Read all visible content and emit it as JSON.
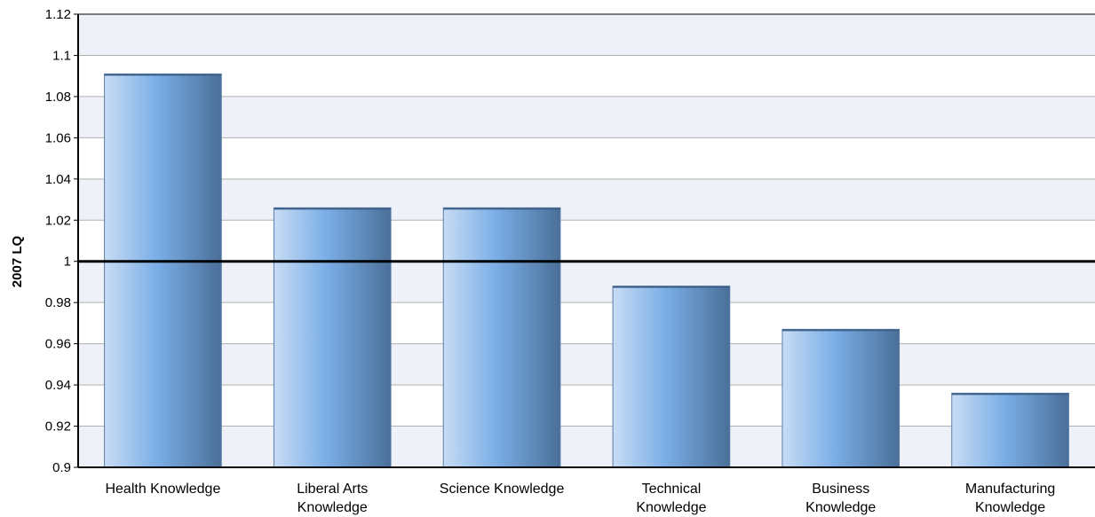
{
  "chart_data": {
    "type": "bar",
    "title": "",
    "xlabel": "",
    "ylabel": "2007 LQ",
    "ylim": [
      0.9,
      1.12
    ],
    "yticks": [
      0.9,
      0.92,
      0.94,
      0.96,
      0.98,
      1,
      1.02,
      1.04,
      1.06,
      1.08,
      1.1,
      1.12
    ],
    "ytick_labels": [
      "0.9",
      "0.92",
      "0.94",
      "0.96",
      "0.98",
      "1",
      "1.02",
      "1.04",
      "1.06",
      "1.08",
      "1.1",
      "1.12"
    ],
    "reference_line": 1,
    "grid": true,
    "alternating_bands": true,
    "categories": [
      [
        "Health Knowledge"
      ],
      [
        "Liberal Arts",
        "Knowledge"
      ],
      [
        "Science Knowledge"
      ],
      [
        "Technical",
        "Knowledge"
      ],
      [
        "Business",
        "Knowledge"
      ],
      [
        "Manufacturing",
        "Knowledge"
      ]
    ],
    "values": [
      1.091,
      1.026,
      1.026,
      0.988,
      0.967,
      0.936
    ],
    "colors": {
      "bar_light": "#c8dcf5",
      "bar_mid": "#7aaee6",
      "bar_dark": "#4a6f99",
      "band": "#eef2f8",
      "grid": "#b0b0b0",
      "reference": "#000000"
    }
  }
}
